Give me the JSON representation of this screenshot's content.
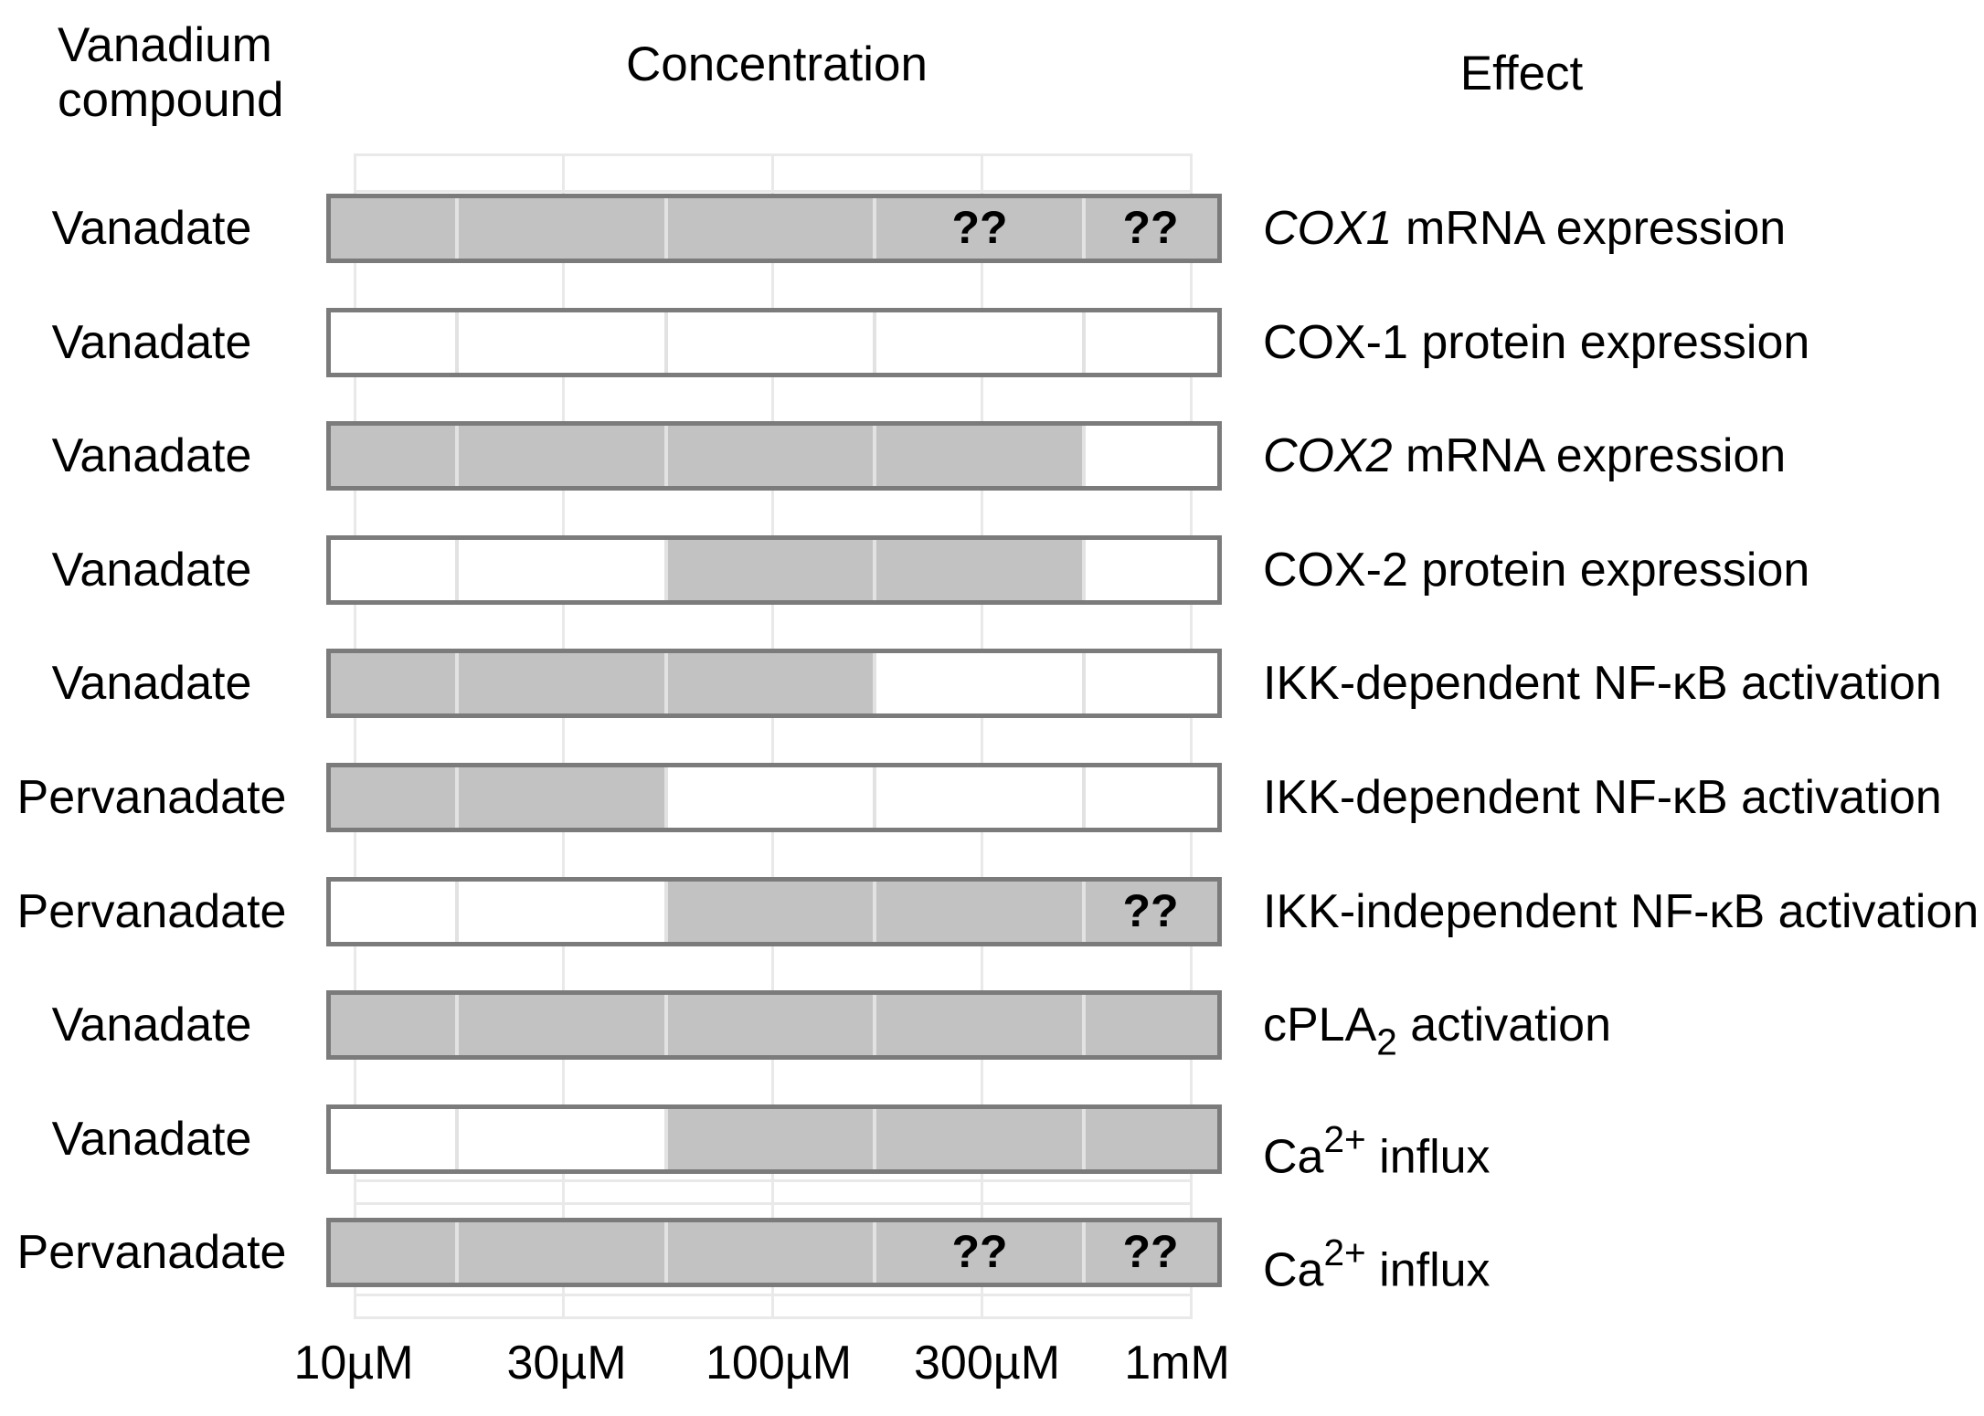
{
  "headers": {
    "compound_column_line1": "Vanadium",
    "compound_column_line2": "compound",
    "concentration": "Concentration",
    "effect": "Effect"
  },
  "axis": {
    "tick_labels": [
      "10µM",
      "30µM",
      "100µM",
      "300µM",
      "1mM"
    ]
  },
  "uncertain_label": "??",
  "colors": {
    "bar_fill": "#c2c2c2",
    "bar_border": "#7b7b7b",
    "segment_divider": "#e2e2e2",
    "grid_line": "#e9e9e9",
    "text": "#000000",
    "background": "#ffffff"
  },
  "rows": [
    {
      "compound": "Vanadate",
      "effect_parts": [
        {
          "text": "COX1",
          "style": "italic"
        },
        {
          "text": " mRNA expression"
        }
      ],
      "segments_gray": [
        true,
        true,
        true,
        true,
        true
      ],
      "uncertain_marks": [
        3,
        4
      ]
    },
    {
      "compound": "Vanadate",
      "effect_parts": [
        {
          "text": "COX-1 protein expression"
        }
      ],
      "segments_gray": [
        false,
        false,
        false,
        false,
        false
      ],
      "uncertain_marks": []
    },
    {
      "compound": "Vanadate",
      "effect_parts": [
        {
          "text": "COX2",
          "style": "italic"
        },
        {
          "text": " mRNA expression"
        }
      ],
      "segments_gray": [
        true,
        true,
        true,
        true,
        false
      ],
      "uncertain_marks": []
    },
    {
      "compound": "Vanadate",
      "effect_parts": [
        {
          "text": "COX-2 protein expression"
        }
      ],
      "segments_gray": [
        false,
        false,
        true,
        true,
        false
      ],
      "uncertain_marks": []
    },
    {
      "compound": "Vanadate",
      "effect_parts": [
        {
          "text": "IKK-dependent NF-κB activation"
        }
      ],
      "segments_gray": [
        true,
        true,
        true,
        false,
        false
      ],
      "uncertain_marks": []
    },
    {
      "compound": "Pervanadate",
      "effect_parts": [
        {
          "text": "IKK-dependent NF-κB activation"
        }
      ],
      "segments_gray": [
        true,
        true,
        false,
        false,
        false
      ],
      "uncertain_marks": []
    },
    {
      "compound": "Pervanadate",
      "effect_parts": [
        {
          "text": "IKK-independent NF-κB activation"
        }
      ],
      "segments_gray": [
        false,
        false,
        true,
        true,
        true
      ],
      "uncertain_marks": [
        4
      ]
    },
    {
      "compound": "Vanadate",
      "effect_parts": [
        {
          "text": "cPLA"
        },
        {
          "text": "2",
          "style": "sub"
        },
        {
          "text": " activation"
        }
      ],
      "segments_gray": [
        true,
        true,
        true,
        true,
        true
      ],
      "uncertain_marks": []
    },
    {
      "compound": "Vanadate",
      "effect_parts": [
        {
          "text": "Ca"
        },
        {
          "text": "2+",
          "style": "sup"
        },
        {
          "text": " influx"
        }
      ],
      "segments_gray": [
        false,
        false,
        true,
        true,
        true
      ],
      "uncertain_marks": []
    },
    {
      "compound": "Pervanadate",
      "effect_parts": [
        {
          "text": "Ca"
        },
        {
          "text": "2+",
          "style": "sup"
        },
        {
          "text": " influx"
        }
      ],
      "segments_gray": [
        true,
        true,
        true,
        true,
        true
      ],
      "uncertain_marks": [
        3,
        4
      ]
    }
  ],
  "chart_data": {
    "type": "table",
    "columns": [
      "Vanadium compound",
      "Concentration",
      "Effect"
    ],
    "x_axis": {
      "scale": "log",
      "tick_labels": [
        "10µM",
        "30µM",
        "100µM",
        "300µM",
        "1mM"
      ]
    },
    "legend": "gray segment = effect present at that concentration; white = absent; ?? = uncertain",
    "rows": [
      {
        "compound": "Vanadate",
        "effect": "COX1 mRNA expression",
        "active": [
          "10µM",
          "30µM",
          "100µM",
          "300µM",
          "1mM"
        ],
        "uncertain": [
          "300µM",
          "1mM"
        ]
      },
      {
        "compound": "Vanadate",
        "effect": "COX-1 protein expression",
        "active": [],
        "uncertain": []
      },
      {
        "compound": "Vanadate",
        "effect": "COX2 mRNA expression",
        "active": [
          "10µM",
          "30µM",
          "100µM",
          "300µM"
        ],
        "uncertain": []
      },
      {
        "compound": "Vanadate",
        "effect": "COX-2 protein expression",
        "active": [
          "100µM",
          "300µM"
        ],
        "uncertain": []
      },
      {
        "compound": "Vanadate",
        "effect": "IKK-dependent NF-κB activation",
        "active": [
          "10µM",
          "30µM",
          "100µM"
        ],
        "uncertain": []
      },
      {
        "compound": "Pervanadate",
        "effect": "IKK-dependent NF-κB activation",
        "active": [
          "10µM",
          "30µM"
        ],
        "uncertain": []
      },
      {
        "compound": "Pervanadate",
        "effect": "IKK-independent NF-κB activation",
        "active": [
          "100µM",
          "300µM",
          "1mM"
        ],
        "uncertain": [
          "1mM"
        ]
      },
      {
        "compound": "Vanadate",
        "effect": "cPLA2 activation",
        "active": [
          "10µM",
          "30µM",
          "100µM",
          "300µM",
          "1mM"
        ],
        "uncertain": []
      },
      {
        "compound": "Vanadate",
        "effect": "Ca2+ influx",
        "active": [
          "100µM",
          "300µM",
          "1mM"
        ],
        "uncertain": []
      },
      {
        "compound": "Pervanadate",
        "effect": "Ca2+ influx",
        "active": [
          "10µM",
          "30µM",
          "100µM",
          "300µM",
          "1mM"
        ],
        "uncertain": [
          "300µM",
          "1mM"
        ]
      }
    ]
  }
}
